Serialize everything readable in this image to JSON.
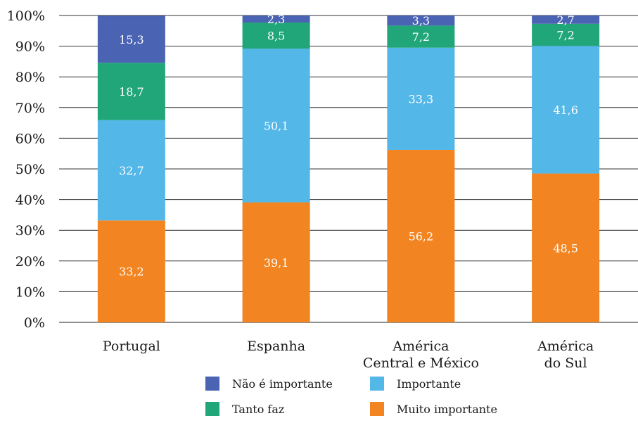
{
  "chart_data": {
    "type": "bar",
    "stacked": true,
    "categories": [
      [
        "Portugal"
      ],
      [
        "Espanha"
      ],
      [
        "América",
        "Central e México"
      ],
      [
        "América",
        "do Sul"
      ]
    ],
    "series": [
      {
        "name": "Muito importante",
        "color": "#f28522",
        "values": [
          33.2,
          39.1,
          56.2,
          48.5
        ],
        "labels": [
          "33,2",
          "39,1",
          "56,2",
          "48,5"
        ]
      },
      {
        "name": "Importante",
        "color": "#53b7e8",
        "values": [
          32.7,
          50.1,
          33.3,
          41.6
        ],
        "labels": [
          "32,7",
          "50,1",
          "33,3",
          "41,6"
        ]
      },
      {
        "name": "Tanto faz",
        "color": "#21a67a",
        "values": [
          18.7,
          8.5,
          7.2,
          7.2
        ],
        "labels": [
          "18,7",
          "8,5",
          "7,2",
          "7,2"
        ]
      },
      {
        "name": "Não é importante",
        "color": "#4a63b2",
        "values": [
          15.3,
          2.3,
          3.3,
          2.7
        ],
        "labels": [
          "15,3",
          "2,3",
          "3,3",
          "2,7"
        ]
      }
    ],
    "ylim": [
      0,
      100
    ],
    "yticks": [
      "0%",
      "10%",
      "20%",
      "30%",
      "40%",
      "50%",
      "60%",
      "70%",
      "80%",
      "90%",
      "100%"
    ],
    "grid": true,
    "legend_position": "bottom",
    "legend_order": [
      "Não é importante",
      "Importante",
      "Tanto faz",
      "Muito importante"
    ]
  }
}
